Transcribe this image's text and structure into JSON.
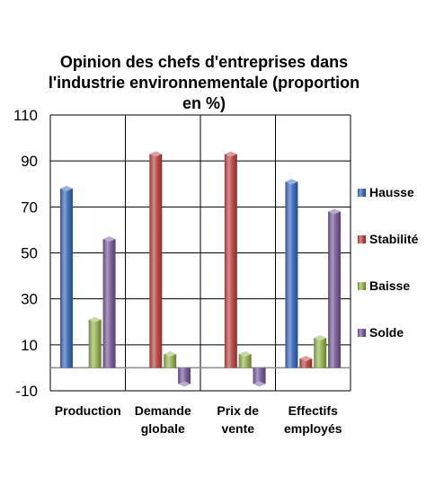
{
  "chart_data": {
    "type": "bar",
    "title_lines": [
      "Opinion des chefs d'entreprises dans",
      "l'industrie environnementale (proportion",
      "en %)"
    ],
    "categories": [
      [
        "Production"
      ],
      [
        "Demande",
        "globale"
      ],
      [
        "Prix de",
        "vente"
      ],
      [
        "Effectifs",
        "employés"
      ]
    ],
    "series": [
      {
        "name": "Hausse",
        "color": "#4472C4",
        "values": [
          78,
          null,
          null,
          81
        ]
      },
      {
        "name": "Stabilité",
        "color": "#C0504D",
        "values": [
          null,
          93,
          93,
          4
        ]
      },
      {
        "name": "Baisse",
        "color": "#9BBB59",
        "values": [
          21,
          6,
          6,
          13
        ]
      },
      {
        "name": "Solde",
        "color": "#8064A2",
        "values": [
          56,
          -7,
          -7,
          68
        ]
      }
    ],
    "yticks": [
      110,
      90,
      70,
      50,
      30,
      10,
      -10
    ],
    "ylim": [
      -10,
      110
    ],
    "grid": true,
    "legend_position": "right"
  }
}
